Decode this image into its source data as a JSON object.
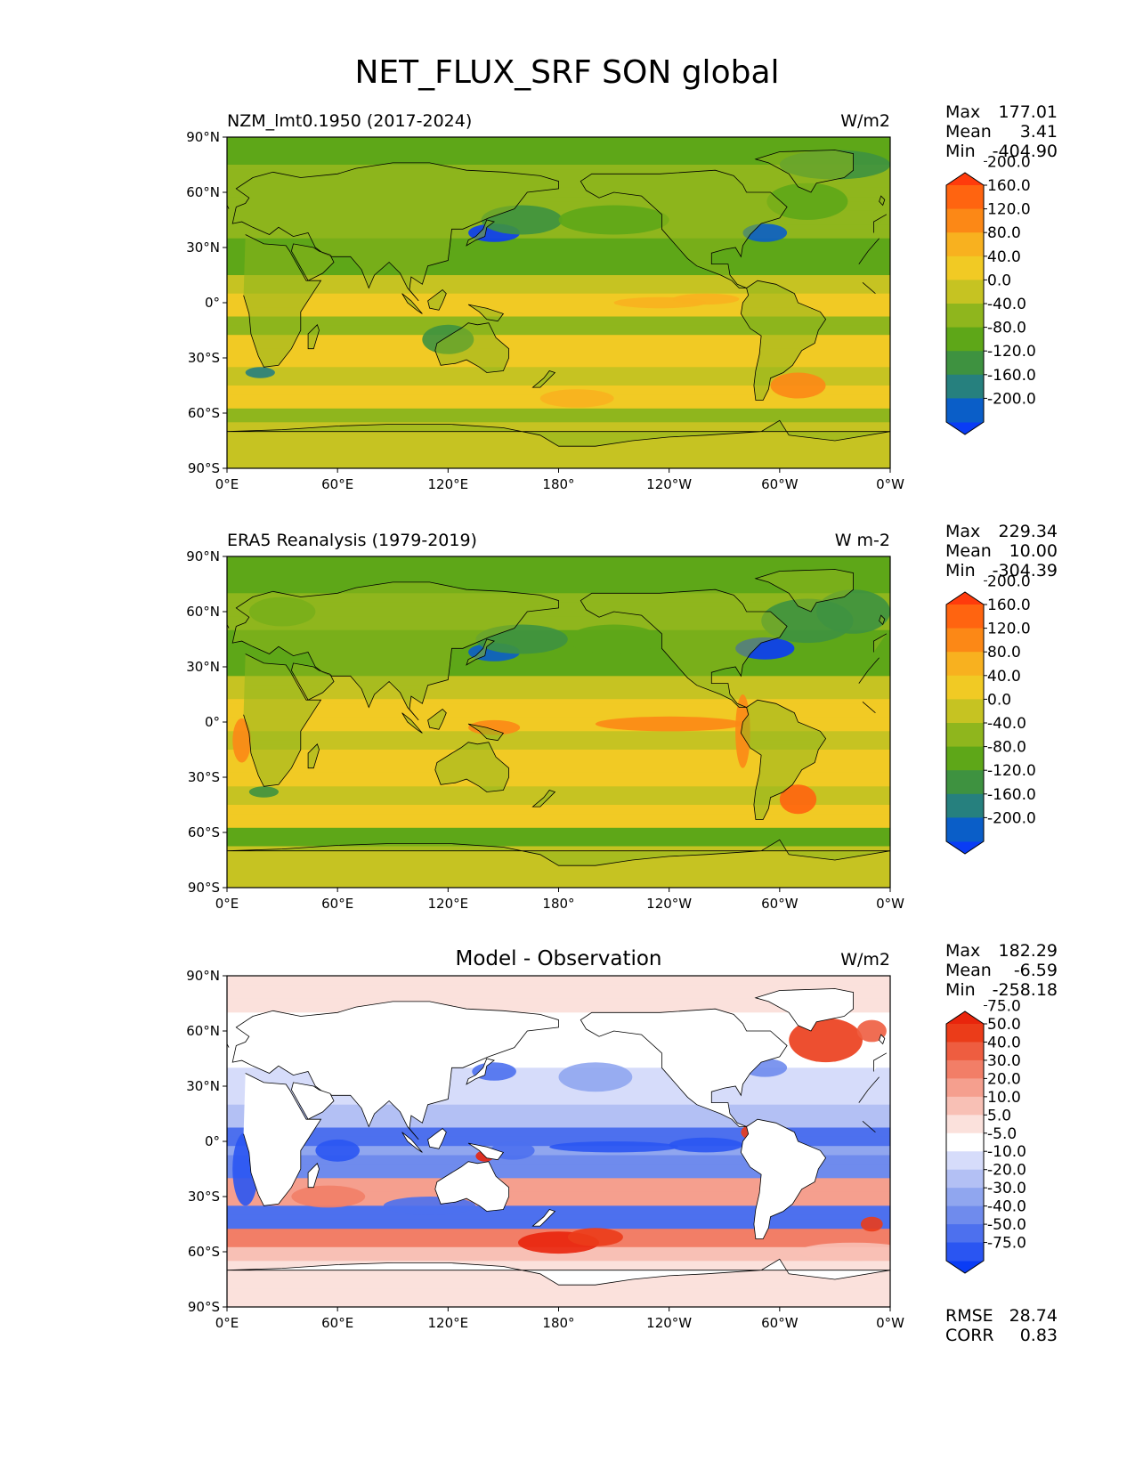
{
  "chart_data": {
    "type": "heatmap",
    "title": "NET_FLUX_SRF SON global",
    "projection": "cylindrical equidistant, centered on 180°",
    "x_ticks": [
      "0°E",
      "60°E",
      "120°E",
      "180°",
      "120°W",
      "60°W",
      "0°W"
    ],
    "y_ticks": [
      "90°N",
      "60°N",
      "30°N",
      "0°",
      "30°S",
      "60°S",
      "90°S"
    ],
    "xlim": [
      0,
      360
    ],
    "ylim": [
      -90,
      90
    ],
    "panels": [
      {
        "name": "test",
        "left_title": "NZM_lmt0.1950 (2017-2024)",
        "center_title": "",
        "units": "W/m2",
        "stats": {
          "max_label": "Max",
          "max": "177.01",
          "mean_label": "Mean",
          "mean": "3.41",
          "min_label": "Min",
          "min": "-404.90"
        },
        "colorbar": {
          "levels": [
            "-200.0",
            "-160.0",
            "-120.0",
            "-80.0",
            "-40.0",
            "0.0",
            "40.0",
            "80.0",
            "120.0",
            "160.0",
            "200.0"
          ],
          "colors": [
            "#0a3cf5",
            "#0a5ec8",
            "#26807e",
            "#3e9240",
            "#5ea718",
            "#8fb61d",
            "#c6c322",
            "#f1ca24",
            "#f8b11f",
            "#fc8816",
            "#ff6410",
            "#ff3b0c"
          ]
        }
      },
      {
        "name": "reference",
        "left_title": "ERA5 Reanalysis (1979-2019)",
        "center_title": "",
        "units": "W m-2",
        "stats": {
          "max_label": "Max",
          "max": "229.34",
          "mean_label": "Mean",
          "mean": "10.00",
          "min_label": "Min",
          "min": "-304.39"
        },
        "colorbar": {
          "levels": [
            "-200.0",
            "-160.0",
            "-120.0",
            "-80.0",
            "-40.0",
            "0.0",
            "40.0",
            "80.0",
            "120.0",
            "160.0",
            "200.0"
          ],
          "colors": [
            "#0a3cf5",
            "#0a5ec8",
            "#26807e",
            "#3e9240",
            "#5ea718",
            "#8fb61d",
            "#c6c322",
            "#f1ca24",
            "#f8b11f",
            "#fc8816",
            "#ff6410",
            "#ff3b0c"
          ]
        }
      },
      {
        "name": "difference",
        "left_title": "",
        "center_title": "Model - Observation",
        "units": "W/m2",
        "stats": {
          "max_label": "Max",
          "max": "182.29",
          "mean_label": "Mean",
          "mean": "-6.59",
          "min_label": "Min",
          "min": "-258.18"
        },
        "metrics": {
          "rmse_label": "RMSE",
          "rmse": "28.74",
          "corr_label": "CORR",
          "corr": "0.83"
        },
        "colorbar": {
          "levels": [
            "-75.0",
            "-50.0",
            "-40.0",
            "-30.0",
            "-20.0",
            "-10.0",
            "-5.0",
            "5.0",
            "10.0",
            "20.0",
            "30.0",
            "40.0",
            "50.0",
            "75.0"
          ],
          "colors": [
            "#0a3cf5",
            "#2a55f2",
            "#4d70ee",
            "#6f8bed",
            "#90a6ef",
            "#b3c0f4",
            "#d6dcfa",
            "#ffffff",
            "#fbe1dc",
            "#f8c0b5",
            "#f59f8e",
            "#f27e67",
            "#ee5d40",
            "#eb3c19",
            "#e9250c"
          ]
        }
      }
    ]
  }
}
